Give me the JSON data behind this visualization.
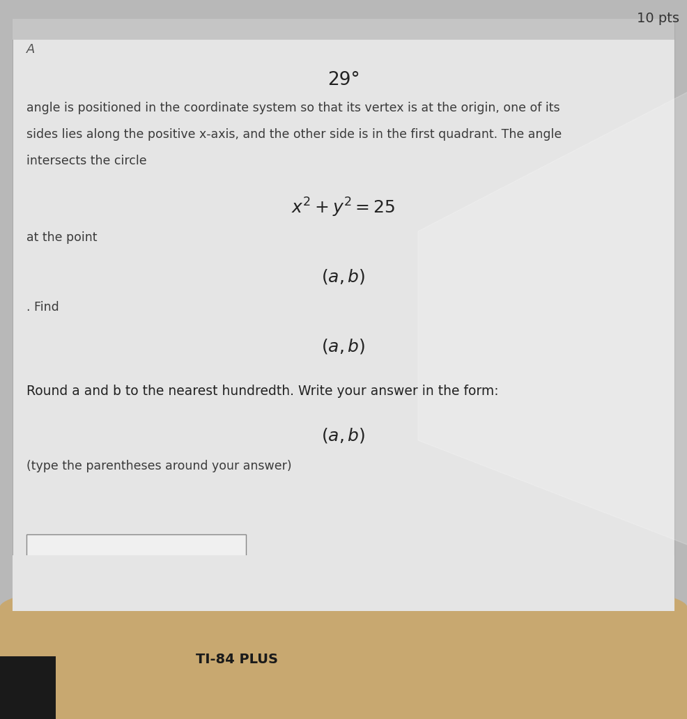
{
  "outer_bg": "#b0b0b0",
  "card_bg": "#e8e8e8",
  "top_strip_color": "#c0c0c0",
  "top_right_text": "10 pts",
  "top_left_letter": "A",
  "title": "29°",
  "para_line1": "angle is positioned in the coordinate system so that its vertex is at the origin, one of its",
  "para_line2": "sides lies along the positive x-axis, and the other side is in the first quadrant. The angle",
  "para_line3": "intersects the circle",
  "equation1": "$x^2 + y^2 = 25$",
  "at_the_point": "at the point",
  "point1": "$(a, b)$",
  "find_text": ". Find",
  "point2": "$(a, b)$",
  "round_text": "Round a and b to the nearest hundredth. Write your answer in the form:",
  "point3": "$(a, b)$",
  "parentheses_text": "(type the parentheses around your answer)",
  "ti84_label": "TI-84 PLUS",
  "text_color": "#3a3a3a",
  "dark_text_color": "#222222"
}
